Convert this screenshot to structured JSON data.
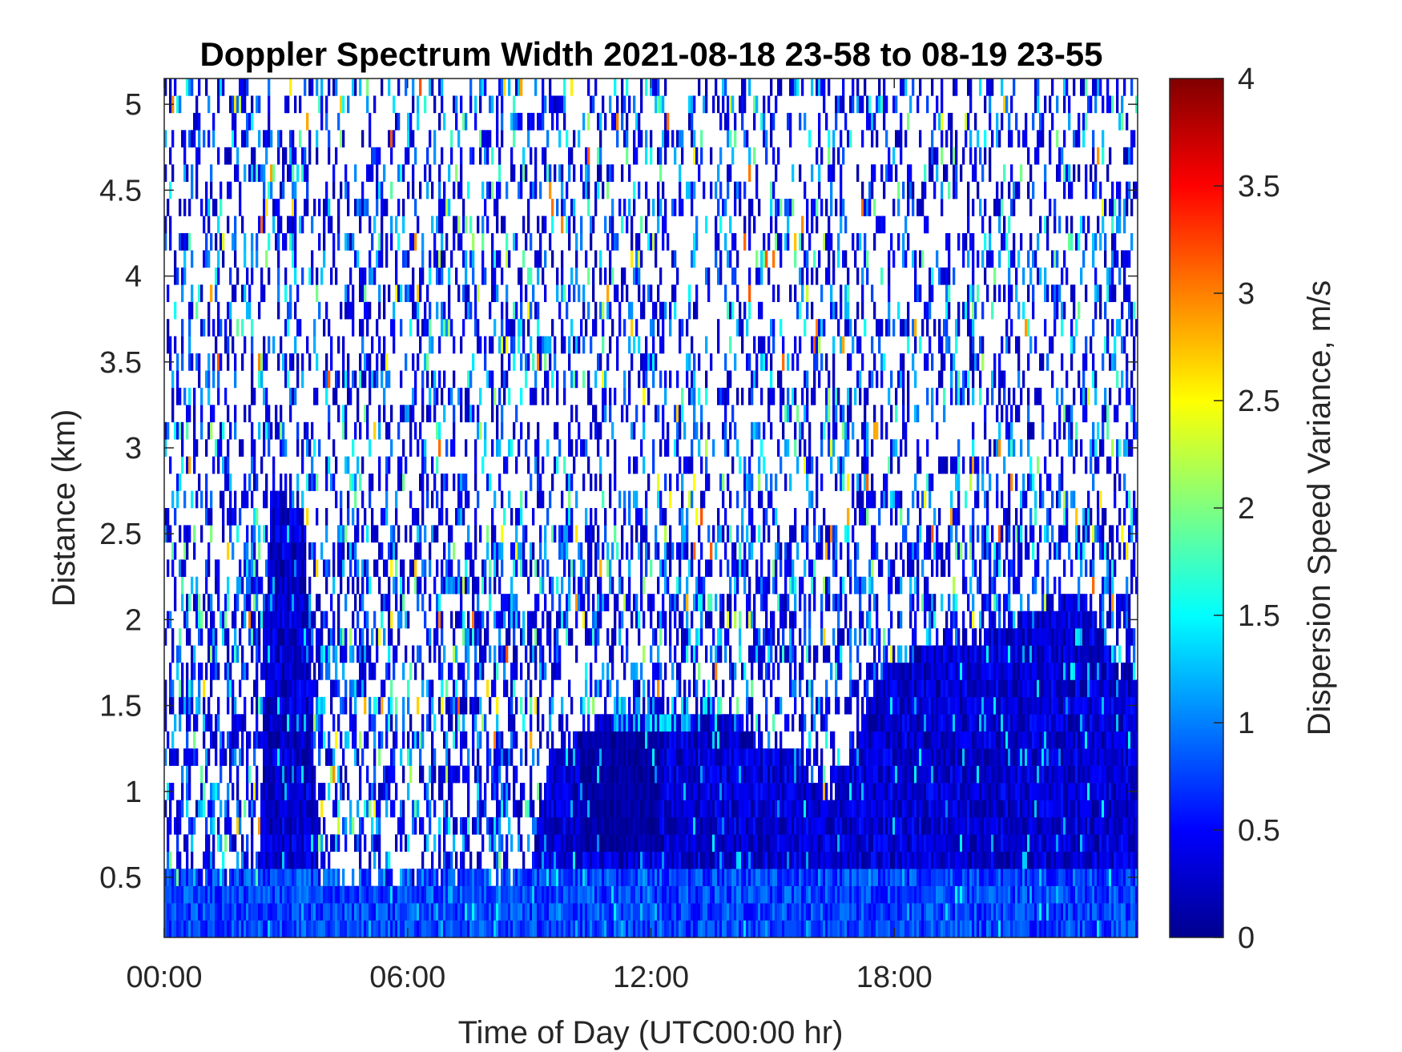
{
  "chart_data": {
    "type": "heatmap",
    "title": "Doppler Spectrum Width 2021-08-18 23-58 to 08-19 23-55",
    "xlabel": "Time of Day (UTC00:00 hr)",
    "ylabel": "Distance (km)",
    "colorbar_label": "Dispersion Speed Variance, m/s",
    "colormap": "jet",
    "xlim": [
      0,
      24
    ],
    "ylim": [
      0.15,
      5.15
    ],
    "clim": [
      0,
      4
    ],
    "x_ticks": [
      0,
      6,
      12,
      18
    ],
    "x_tick_labels": [
      "00:00",
      "06:00",
      "12:00",
      "18:00"
    ],
    "y_ticks": [
      0.5,
      1,
      1.5,
      2,
      2.5,
      3,
      3.5,
      4,
      4.5,
      5
    ],
    "y_tick_labels": [
      "0.5",
      "1",
      "1.5",
      "2",
      "2.5",
      "3",
      "3.5",
      "4",
      "4.5",
      "5"
    ],
    "colorbar_ticks": [
      0,
      0.5,
      1,
      1.5,
      2,
      2.5,
      3,
      3.5,
      4
    ],
    "colorbar_tick_labels": [
      "0",
      "0.5",
      "1",
      "1.5",
      "2",
      "2.5",
      "3",
      "3.5",
      "4"
    ],
    "range_gate_km": 0.1,
    "missing_value_color": "#ffffff",
    "dense_layer_top_km": [
      {
        "t": 0,
        "top": 0.55
      },
      {
        "t": 2.3,
        "top": 0.6
      },
      {
        "t": 2.6,
        "top": 2.8
      },
      {
        "t": 3.4,
        "top": 2.7
      },
      {
        "t": 3.8,
        "top": 0.55
      },
      {
        "t": 9.0,
        "top": 0.6
      },
      {
        "t": 9.5,
        "top": 1.3
      },
      {
        "t": 10.5,
        "top": 1.45
      },
      {
        "t": 11.0,
        "top": 1.55
      },
      {
        "t": 13.5,
        "top": 1.55
      },
      {
        "t": 15.0,
        "top": 1.3
      },
      {
        "t": 15.6,
        "top": 1.25
      },
      {
        "t": 16.5,
        "top": 1.0
      },
      {
        "t": 17.5,
        "top": 1.7
      },
      {
        "t": 18.5,
        "top": 1.9
      },
      {
        "t": 20.5,
        "top": 2.0
      },
      {
        "t": 21.8,
        "top": 2.15
      },
      {
        "t": 22.5,
        "top": 2.2
      },
      {
        "t": 23.0,
        "top": 2.05
      },
      {
        "t": 23.5,
        "top": 1.8
      },
      {
        "t": 24.0,
        "top": 1.75
      }
    ]
  }
}
